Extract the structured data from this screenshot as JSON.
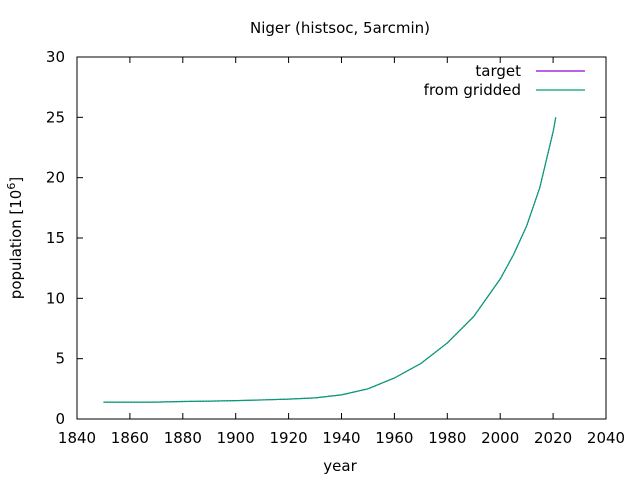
{
  "chart_data": {
    "type": "line",
    "title": "Niger (histsoc, 5arcmin)",
    "xlabel": "year",
    "ylabel_main": "population [10",
    "ylabel_exp": "6",
    "ylabel_close": "]",
    "xlim": [
      1840,
      2040
    ],
    "ylim": [
      0,
      30
    ],
    "xticks": [
      1840,
      1860,
      1880,
      1900,
      1920,
      1940,
      1960,
      1980,
      2000,
      2020,
      2040
    ],
    "yticks": [
      0,
      5,
      10,
      15,
      20,
      25,
      30
    ],
    "grid": false,
    "legend_position": "top-right",
    "x": [
      1850,
      1860,
      1870,
      1880,
      1890,
      1900,
      1910,
      1920,
      1930,
      1940,
      1950,
      1960,
      1970,
      1980,
      1990,
      2000,
      2005,
      2010,
      2015,
      2020,
      2021
    ],
    "series": [
      {
        "name": "target",
        "color": "#9400d3",
        "values": [
          1.4,
          1.4,
          1.4,
          1.45,
          1.48,
          1.52,
          1.58,
          1.65,
          1.75,
          2.0,
          2.5,
          3.4,
          4.6,
          6.3,
          8.5,
          11.6,
          13.6,
          16.0,
          19.2,
          23.8,
          25.0
        ]
      },
      {
        "name": "from gridded",
        "color": "#009e73",
        "values": [
          1.4,
          1.4,
          1.4,
          1.45,
          1.48,
          1.52,
          1.58,
          1.65,
          1.75,
          2.0,
          2.5,
          3.4,
          4.6,
          6.3,
          8.5,
          11.6,
          13.6,
          16.0,
          19.2,
          23.8,
          25.0
        ]
      }
    ]
  }
}
